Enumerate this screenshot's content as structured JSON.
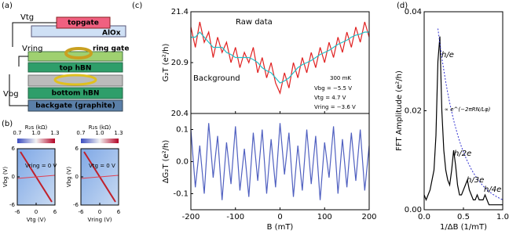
{
  "panels": {
    "labels": [
      "(a)",
      "(b)",
      "(c)",
      "(d)"
    ]
  },
  "device": {
    "topgate": "topgate",
    "alox": "AlOx",
    "v_tg": "Vtg",
    "v_ring": "Vring",
    "ring_gate": "ring gate",
    "top_hbn": "top hBN",
    "bottom_hbn": "bottom hBN",
    "backgate": "backgate (graphite)",
    "v_bg": "Vbg"
  },
  "chart_data": [
    {
      "type": "line",
      "y_label": "G₂T (e²/h)",
      "x": [
        -200,
        -190,
        -180,
        -170,
        -160,
        -150,
        -140,
        -130,
        -120,
        -110,
        -100,
        -90,
        -80,
        -70,
        -60,
        -50,
        -40,
        -30,
        -20,
        -10,
        0,
        10,
        20,
        30,
        40,
        50,
        60,
        70,
        80,
        90,
        100,
        110,
        120,
        130,
        140,
        150,
        160,
        170,
        180,
        190,
        200
      ],
      "xlim": [
        -200,
        200
      ],
      "xticks": [
        -200,
        -100,
        0,
        100,
        200
      ],
      "ylim": [
        20.4,
        21.4
      ],
      "yticks": [
        20.4,
        20.9,
        21.4
      ],
      "series": [
        {
          "name": "Raw data",
          "color": "#e02020",
          "values": [
            21.25,
            21.05,
            21.3,
            21.1,
            21.2,
            20.95,
            21.15,
            21.0,
            21.1,
            20.9,
            21.05,
            20.85,
            21.0,
            20.9,
            21.05,
            20.8,
            20.95,
            20.75,
            20.9,
            20.7,
            20.6,
            20.8,
            20.65,
            20.9,
            20.75,
            20.95,
            20.8,
            21.0,
            20.85,
            21.05,
            20.9,
            21.1,
            20.95,
            21.15,
            21.0,
            21.2,
            21.05,
            21.25,
            21.1,
            21.3,
            21.15
          ]
        },
        {
          "name": "Background",
          "color": "#20c0c8",
          "values": [
            21.15,
            21.15,
            21.2,
            21.15,
            21.1,
            21.05,
            21.05,
            21.05,
            21.0,
            20.98,
            20.95,
            20.95,
            20.95,
            20.95,
            20.93,
            20.9,
            20.85,
            20.82,
            20.8,
            20.75,
            20.7,
            20.72,
            20.75,
            20.8,
            20.85,
            20.88,
            20.9,
            20.92,
            20.95,
            20.98,
            21.0,
            21.02,
            21.05,
            21.08,
            21.1,
            21.12,
            21.15,
            21.17,
            21.18,
            21.2,
            21.2
          ]
        }
      ],
      "annotations": [
        "300 mK",
        "Vbg  = −5.5 V",
        "Vtg  =  4.7 V",
        "Vring = −3.6 V"
      ]
    },
    {
      "type": "line",
      "x_label": "B (mT)",
      "y_label": "ΔG₂T (e²/h)",
      "x": [
        -200,
        -190,
        -180,
        -170,
        -160,
        -150,
        -140,
        -130,
        -120,
        -110,
        -100,
        -90,
        -80,
        -70,
        -60,
        -50,
        -40,
        -30,
        -20,
        -10,
        0,
        10,
        20,
        30,
        40,
        50,
        60,
        70,
        80,
        90,
        100,
        110,
        120,
        130,
        140,
        150,
        160,
        170,
        180,
        190,
        200
      ],
      "xlim": [
        -200,
        200
      ],
      "xticks": [
        -200,
        -100,
        0,
        100,
        200
      ],
      "ylim": [
        -0.15,
        0.15
      ],
      "yticks": [
        -0.1,
        {
          "value": 0,
          "label": "0.0"
        },
        0.1
      ],
      "series": [
        {
          "color": "#5060c0",
          "values": [
            0.1,
            -0.08,
            0.05,
            -0.1,
            0.12,
            -0.05,
            0.08,
            -0.12,
            0.06,
            -0.07,
            0.11,
            -0.09,
            0.04,
            -0.11,
            0.09,
            -0.06,
            0.1,
            -0.1,
            0.07,
            -0.08,
            0.12,
            -0.04,
            0.09,
            -0.11,
            0.05,
            -0.09,
            0.1,
            -0.07,
            0.08,
            -0.12,
            0.06,
            -0.05,
            0.11,
            -0.1,
            0.07,
            -0.08,
            0.09,
            -0.06,
            0.1,
            -0.09,
            0.05
          ]
        }
      ]
    },
    {
      "type": "line",
      "x_label": "1/ΔB (1/mT)",
      "y_label": "FFT Amplitude (e²/h)",
      "x": [
        0,
        0.025,
        0.05,
        0.075,
        0.1,
        0.125,
        0.15,
        0.175,
        0.2,
        0.225,
        0.25,
        0.275,
        0.3,
        0.325,
        0.35,
        0.375,
        0.4,
        0.425,
        0.45,
        0.475,
        0.5,
        0.525,
        0.55,
        0.575,
        0.6,
        0.625,
        0.65,
        0.675,
        0.7,
        0.725,
        0.75,
        0.775,
        0.8,
        0.825,
        0.85,
        0.875,
        0.9,
        0.925,
        0.95,
        0.975,
        1.0
      ],
      "xlim": [
        0,
        1
      ],
      "xticks": [
        {
          "value": 0,
          "label": "0.0"
        },
        0.5,
        {
          "value": 1,
          "label": "1.0"
        }
      ],
      "ylim": [
        0,
        0.04
      ],
      "yticks": [
        {
          "value": 0,
          "label": "0.00"
        },
        0.02,
        0.04
      ],
      "series": [
        {
          "color": "#000000",
          "values": [
            0.003,
            0.002,
            0.003,
            0.004,
            0.006,
            0.008,
            0.015,
            0.03,
            0.035,
            0.02,
            0.012,
            0.008,
            0.006,
            0.005,
            0.008,
            0.012,
            0.009,
            0.005,
            0.003,
            0.003,
            0.004,
            0.005,
            0.006,
            0.004,
            0.003,
            0.002,
            0.002,
            0.003,
            0.002,
            0.002,
            0.002,
            0.003,
            0.002,
            0.001,
            0.001,
            0.001,
            0.001,
            0.001,
            0.001,
            0.001,
            0.001
          ]
        },
        {
          "color": "#3030d0",
          "dashed": true,
          "values": [
            null,
            null,
            null,
            null,
            null,
            null,
            null,
            0.0366,
            0.0336,
            0.0307,
            0.0282,
            0.0258,
            0.0236,
            0.0216,
            0.0198,
            0.0181,
            0.0166,
            0.0152,
            0.0139,
            0.0127,
            0.0117,
            0.0107,
            0.0098,
            0.009,
            0.0082,
            0.0075,
            0.0069,
            0.0063,
            0.0058,
            0.0053,
            0.0048,
            0.0044,
            0.0041,
            0.0037,
            0.0034,
            0.0031,
            0.0029,
            0.0026,
            0.0024,
            0.0022,
            0.002
          ]
        }
      ],
      "annotations": [
        "h/e",
        "∝ e^(−2πRN/Lφ)",
        "h/2e",
        "h/3e",
        "h/4e"
      ]
    },
    {
      "type": "heatmap",
      "x_label": "Vtg (V)",
      "y_label": "Vbg (V)",
      "colorbar_label": "R₂s (kΩ)",
      "xlim": [
        -6,
        6
      ],
      "xticks": [
        -6,
        0,
        6
      ],
      "ylim": [
        -6,
        6
      ],
      "yticks": [
        -6,
        0,
        6
      ],
      "clim": [
        0.7,
        1.3
      ],
      "cticks": [
        0.7,
        {
          "value": 1,
          "label": "1.0"
        },
        1.3
      ],
      "annotations": [
        "Vring = 0 V"
      ]
    },
    {
      "type": "heatmap",
      "x_label": "Vring (V)",
      "y_label": "Vbg (V)",
      "colorbar_label": "R₂s (kΩ)",
      "xlim": [
        -6,
        6
      ],
      "xticks": [
        -6,
        0,
        6
      ],
      "ylim": [
        -6,
        6
      ],
      "yticks": [
        -6,
        0,
        6
      ],
      "clim": [
        0.7,
        1.3
      ],
      "cticks": [
        0.7,
        {
          "value": 1,
          "label": "1.0"
        },
        1.3
      ],
      "annotations": [
        "Vtg = 0 V"
      ]
    }
  ]
}
